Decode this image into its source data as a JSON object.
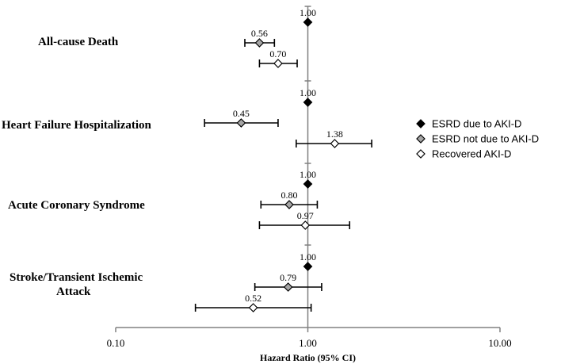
{
  "chart_data": {
    "type": "scatter",
    "subtype": "forest-plot",
    "title": "",
    "xlabel": "Hazard Ratio (95% CI)",
    "ylabel": "",
    "x_scale": "log",
    "xlim": [
      0.1,
      10
    ],
    "x_ticks": [
      "0.10",
      "1.00",
      "10.00"
    ],
    "legend_position": "right",
    "series": [
      {
        "name": "ESRD due to AKI-D",
        "marker": "diamond",
        "fill": "#000000"
      },
      {
        "name": "ESRD not due to AKI-D",
        "marker": "diamond",
        "fill": "#a6a6a6"
      },
      {
        "name": "Recovered AKI-D",
        "marker": "diamond",
        "fill": "#ffffff"
      }
    ],
    "groups": [
      {
        "label": "All-cause Death",
        "points": [
          {
            "series": 0,
            "hr": 1.0,
            "label": "1.00",
            "ci": null
          },
          {
            "series": 1,
            "hr": 0.56,
            "label": "0.56",
            "ci": [
              0.47,
              0.67
            ]
          },
          {
            "series": 2,
            "hr": 0.7,
            "label": "0.70",
            "ci": [
              0.56,
              0.88
            ]
          }
        ]
      },
      {
        "label": "Heart Failure Hospitalization",
        "points": [
          {
            "series": 0,
            "hr": 1.0,
            "label": "1.00",
            "ci": null
          },
          {
            "series": 1,
            "hr": 0.45,
            "label": "0.45",
            "ci": [
              0.29,
              0.7
            ]
          },
          {
            "series": 2,
            "hr": 1.38,
            "label": "1.38",
            "ci": [
              0.87,
              2.15
            ]
          }
        ]
      },
      {
        "label": "Acute Coronary Syndrome",
        "points": [
          {
            "series": 0,
            "hr": 1.0,
            "label": "1.00",
            "ci": null
          },
          {
            "series": 1,
            "hr": 0.8,
            "label": "0.80",
            "ci": [
              0.57,
              1.12
            ]
          },
          {
            "series": 2,
            "hr": 0.97,
            "label": "0.97",
            "ci": [
              0.56,
              1.65
            ]
          }
        ]
      },
      {
        "label": "Stroke/Transient Ischemic Attack",
        "label_lines": [
          "Stroke/Transient Ischemic",
          "Attack"
        ],
        "points": [
          {
            "series": 0,
            "hr": 1.0,
            "label": "1.00",
            "ci": null
          },
          {
            "series": 1,
            "hr": 0.79,
            "label": "0.79",
            "ci": [
              0.53,
              1.18
            ]
          },
          {
            "series": 2,
            "hr": 0.52,
            "label": "0.52",
            "ci": [
              0.26,
              1.04
            ]
          }
        ]
      }
    ]
  }
}
